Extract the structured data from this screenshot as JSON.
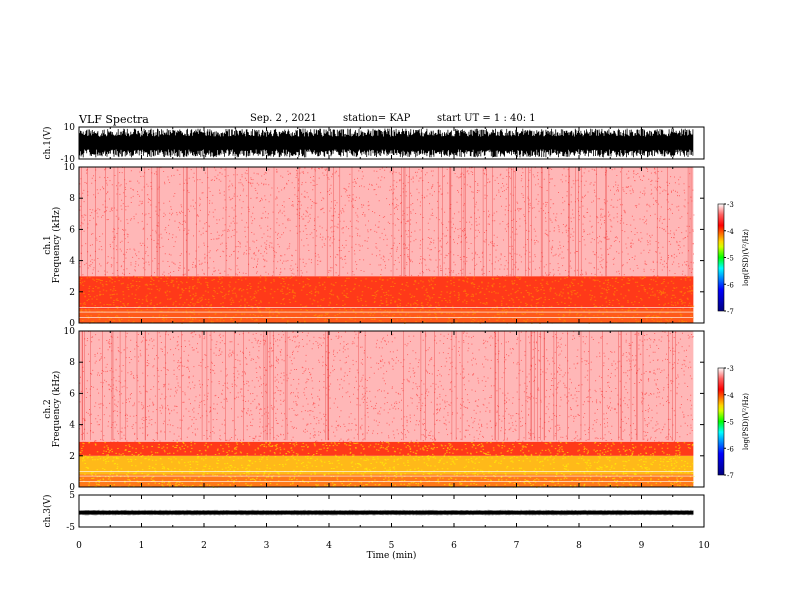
{
  "header": {
    "title": "VLF Spectra",
    "date": "Sep. 2 , 2021",
    "station": "station= KAP",
    "start": "start UT = 1 : 40: 1"
  },
  "chart_data": [
    {
      "type": "line",
      "panel": "ch1-waveform",
      "ylabel": "ch.1(V)",
      "ylim": [
        -10,
        10
      ],
      "yticks": [
        "10",
        "-10"
      ],
      "xlim": [
        0,
        10
      ],
      "description_values": "dense oscillation spanning approximately -9 to 9 V from 0 to 9.83 min"
    },
    {
      "type": "heatmap",
      "panel": "ch1-spectrogram",
      "ylabel": "ch.1 Frequency (kHz)",
      "ylim": [
        0,
        10
      ],
      "yticks": [
        "0",
        "2",
        "4",
        "6",
        "8",
        "10"
      ],
      "xlim": [
        0,
        10
      ],
      "data_end_min": 9.83,
      "bands": [
        {
          "f_low": 0.0,
          "f_high": 0.9,
          "level": -4.0
        },
        {
          "f_low": 0.9,
          "f_high": 3.0,
          "level": -3.9
        },
        {
          "f_low": 3.0,
          "f_high": 10.0,
          "level": -3.2
        }
      ],
      "colorbar": {
        "label": "log(PSD)(V²/Hz)",
        "range": [
          -7,
          -3
        ],
        "ticks": [
          "-3",
          "-4",
          "-5",
          "-6",
          "-7"
        ]
      }
    },
    {
      "type": "heatmap",
      "panel": "ch2-spectrogram",
      "ylabel": "ch.2 Frequency (kHz)",
      "ylim": [
        0,
        10
      ],
      "yticks": [
        "0",
        "2",
        "4",
        "6",
        "8",
        "10"
      ],
      "xlim": [
        0,
        10
      ],
      "data_end_min": 9.83,
      "bands": [
        {
          "f_low": 0.0,
          "f_high": 0.8,
          "level": -4.1
        },
        {
          "f_low": 0.8,
          "f_high": 2.0,
          "level": -4.3
        },
        {
          "f_low": 2.0,
          "f_high": 2.9,
          "level": -3.9
        },
        {
          "f_low": 2.9,
          "f_high": 10.0,
          "level": -3.2
        }
      ],
      "colorbar": {
        "label": "log(PSD)(V²/Hz)",
        "range": [
          -7,
          -3
        ],
        "ticks": [
          "-3",
          "-4",
          "-5",
          "-6",
          "-7"
        ]
      }
    },
    {
      "type": "line",
      "panel": "ch3-waveform",
      "ylabel": "ch.3(V)",
      "ylim": [
        -5,
        5
      ],
      "yticks": [
        "5",
        "-5"
      ],
      "xlim": [
        0,
        10
      ],
      "xlabel": "Time (min)",
      "xticks": [
        "0",
        "1",
        "2",
        "3",
        "4",
        "5",
        "6",
        "7",
        "8",
        "9",
        "10"
      ],
      "description_values": "narrow band near -0.5 V spanning approximately -1 to 0 V"
    }
  ]
}
